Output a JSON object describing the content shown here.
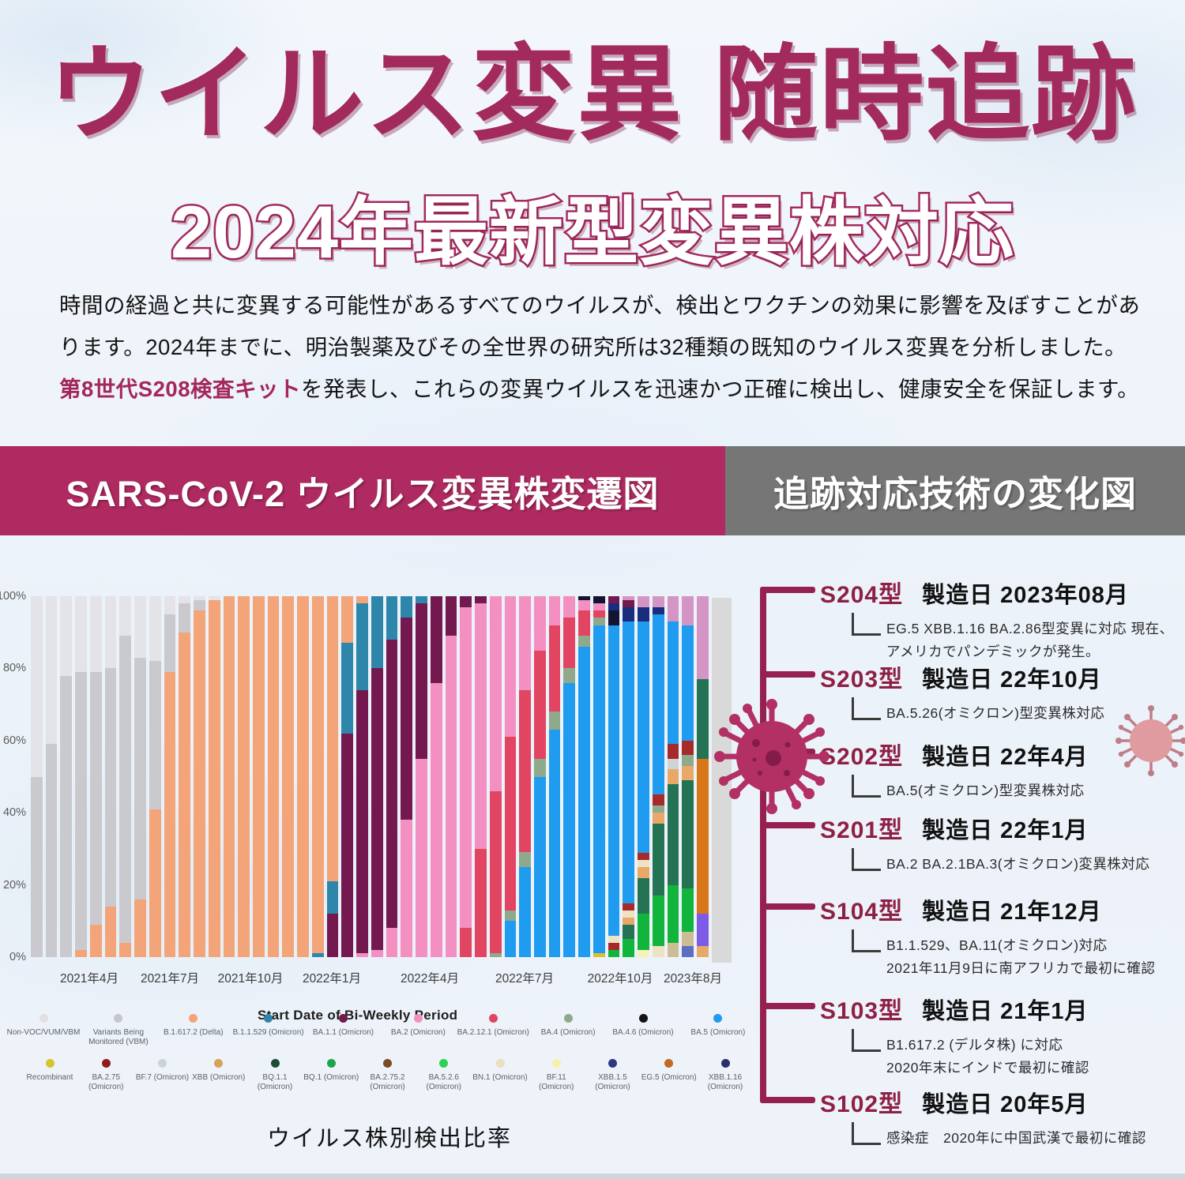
{
  "page": {
    "title": "ウイルス変異 随時追跡",
    "subtitle": "2024年最新型変異株対応"
  },
  "intro": {
    "l1": "時間の経過と共に変異する可能性があるすべてのウイルスが、検出とワクチンの効果に影響を及ぼすことがあります。",
    "l2a": "2024年までに、明治製薬及びその全世界の研究所は32種類の既知のウイルス変異を分析しました。",
    "l2b": "第8世代S208検査",
    "l3a": "キット",
    "l3b": "を発表し、これらの変異ウイルスを迅速かつ正確に検出し、健康安全を保証します。"
  },
  "section_headers": {
    "left": "SARS-CoV-2 ウイルス変異株変遷図",
    "right": "追跡対応技術の変化図"
  },
  "chart_data": {
    "type": "bar",
    "stacked": true,
    "caption": "ウイルス株別検出比率",
    "xlabel": "Start Date of Bi-Weekly Period",
    "ylim": [
      0,
      100
    ],
    "grid": false,
    "y_ticks": [
      "100%",
      "80%",
      "60%",
      "40%",
      "20%",
      "0%"
    ],
    "x_ticks": [
      "2021年4月",
      "2021年7月",
      "2021年10月",
      "2022年1月",
      "2022年4月",
      "2022年7月",
      "2022年10月",
      "2023年8月"
    ],
    "x_tick_centers": [
      113,
      215,
      317,
      420,
      544,
      664,
      785,
      877
    ],
    "colors": {
      "NV": "#e4e4e8",
      "VBM": "#c9c9ce",
      "DL": "#f3a478",
      "OM": "#2e86ab",
      "A11": "#741850",
      "A2": "#f48fc1",
      "A212": "#e24562",
      "A4": "#8fa98c",
      "A46": "#141432",
      "A5": "#1f9bf0",
      "RC": "#d8c22e",
      "A275": "#a62a2a",
      "BF7": "#cdd4d6",
      "XBB": "#e8a968",
      "BQ11": "#257355",
      "BQ1": "#12b53c",
      "A2752": "#7a4b22",
      "A526": "#2be049",
      "BN1": "#ede2c2",
      "BF11": "#f7f3b8",
      "X15": "#1b2c7e",
      "EG5": "#d8761a",
      "X116": "#7d5be6",
      "MV": "#d495c4",
      "SL": "#5e6fc2",
      "TAN": "#cdbd96"
    },
    "legend_row1": [
      {
        "label": "Non-VOC/VUM/VBM",
        "color": "#e0e0e4"
      },
      {
        "label": "Variants Being Monitored (VBM)",
        "color": "#c6c6cb"
      },
      {
        "label": "B.1.617.2 (Delta)",
        "color": "#f3a478"
      },
      {
        "label": "B.1.1.529 (Omicron)",
        "color": "#2e86ab"
      },
      {
        "label": "BA.1.1 (Omicron)",
        "color": "#741850"
      },
      {
        "label": "BA.2 (Omicron)",
        "color": "#f48fc1"
      },
      {
        "label": "BA.2.12.1 (Omicron)",
        "color": "#e24562"
      },
      {
        "label": "BA.4 (Omicron)",
        "color": "#8fa98c"
      },
      {
        "label": "BA.4.6 (Omicron)",
        "color": "#141414"
      },
      {
        "label": "BA.5 (Omicron)",
        "color": "#1f9bf0"
      }
    ],
    "legend_row2": [
      {
        "label": "Recombinant",
        "color": "#d8c22e"
      },
      {
        "label": "BA.2.75 (Omicron)",
        "color": "#8e1d1d"
      },
      {
        "label": "BF.7 (Omicron)",
        "color": "#cdd4d6"
      },
      {
        "label": "XBB (Omicron)",
        "color": "#d9a05b"
      },
      {
        "label": "BQ.1.1 (Omicron)",
        "color": "#1e4d35"
      },
      {
        "label": "BQ.1 (Omicron)",
        "color": "#1fa34d"
      },
      {
        "label": "BA.2.75.2 (Omicron)",
        "color": "#7a4b22"
      },
      {
        "label": "BA.5.2.6 (Omicron)",
        "color": "#2bd355"
      },
      {
        "label": "BN.1 (Omicron)",
        "color": "#ebdfbe"
      },
      {
        "label": "BF.11 (Omicron)",
        "color": "#f5f0ac"
      },
      {
        "label": "XBB.1.5 (Omicron)",
        "color": "#2c3a86"
      },
      {
        "label": "EG.5 (Omicron)",
        "color": "#c06a26"
      },
      {
        "label": "XBB.1.16 (Omicron)",
        "color": "#2a2f6e"
      }
    ],
    "bars": [
      [
        [
          "VBM",
          50
        ],
        [
          "NV",
          50
        ]
      ],
      [
        [
          "VBM",
          59
        ],
        [
          "NV",
          41
        ]
      ],
      [
        [
          "VBM",
          78
        ],
        [
          "NV",
          22
        ]
      ],
      [
        [
          "DL",
          2
        ],
        [
          "VBM",
          77
        ],
        [
          "NV",
          21
        ]
      ],
      [
        [
          "DL",
          9
        ],
        [
          "VBM",
          70
        ],
        [
          "NV",
          21
        ]
      ],
      [
        [
          "DL",
          14
        ],
        [
          "VBM",
          66
        ],
        [
          "NV",
          20
        ]
      ],
      [
        [
          "DL",
          4
        ],
        [
          "VBM",
          85
        ],
        [
          "NV",
          11
        ]
      ],
      [
        [
          "DL",
          16
        ],
        [
          "VBM",
          67
        ],
        [
          "NV",
          17
        ]
      ],
      [
        [
          "DL",
          41
        ],
        [
          "VBM",
          41
        ],
        [
          "NV",
          18
        ]
      ],
      [
        [
          "DL",
          79
        ],
        [
          "VBM",
          16
        ],
        [
          "NV",
          5
        ]
      ],
      [
        [
          "DL",
          90
        ],
        [
          "VBM",
          8
        ],
        [
          "NV",
          2
        ]
      ],
      [
        [
          "DL",
          96
        ],
        [
          "VBM",
          3
        ],
        [
          "NV",
          1
        ]
      ],
      [
        [
          "DL",
          99
        ],
        [
          "NV",
          1
        ]
      ],
      [
        [
          "DL",
          100
        ]
      ],
      [
        [
          "DL",
          100
        ]
      ],
      [
        [
          "DL",
          100
        ]
      ],
      [
        [
          "DL",
          100
        ]
      ],
      [
        [
          "DL",
          100
        ]
      ],
      [
        [
          "DL",
          100
        ]
      ],
      [
        [
          "OM",
          1
        ],
        [
          "DL",
          99
        ]
      ],
      [
        [
          "A11",
          12
        ],
        [
          "OM",
          9
        ],
        [
          "DL",
          79
        ]
      ],
      [
        [
          "A11",
          62
        ],
        [
          "OM",
          25
        ],
        [
          "DL",
          13
        ]
      ],
      [
        [
          "A2",
          1
        ],
        [
          "A11",
          73
        ],
        [
          "OM",
          24
        ],
        [
          "DL",
          2
        ]
      ],
      [
        [
          "A2",
          2
        ],
        [
          "A11",
          78
        ],
        [
          "OM",
          20
        ]
      ],
      [
        [
          "A2",
          8
        ],
        [
          "A11",
          80
        ],
        [
          "OM",
          12
        ]
      ],
      [
        [
          "A2",
          38
        ],
        [
          "A11",
          56
        ],
        [
          "OM",
          6
        ]
      ],
      [
        [
          "A2",
          55
        ],
        [
          "A11",
          43
        ],
        [
          "OM",
          2
        ]
      ],
      [
        [
          "A2",
          76
        ],
        [
          "A11",
          24
        ]
      ],
      [
        [
          "A2",
          89
        ],
        [
          "A11",
          11
        ]
      ],
      [
        [
          "A212",
          8
        ],
        [
          "A2",
          89
        ],
        [
          "A11",
          3
        ]
      ],
      [
        [
          "A212",
          30
        ],
        [
          "A2",
          68
        ],
        [
          "A11",
          2
        ]
      ],
      [
        [
          "A4",
          1
        ],
        [
          "A212",
          45
        ],
        [
          "A2",
          54
        ]
      ],
      [
        [
          "A5",
          10
        ],
        [
          "A4",
          3
        ],
        [
          "A212",
          48
        ],
        [
          "A2",
          39
        ]
      ],
      [
        [
          "A5",
          25
        ],
        [
          "A4",
          4
        ],
        [
          "A212",
          45
        ],
        [
          "A2",
          26
        ]
      ],
      [
        [
          "A5",
          50
        ],
        [
          "A4",
          5
        ],
        [
          "A212",
          30
        ],
        [
          "A2",
          15
        ]
      ],
      [
        [
          "A5",
          63
        ],
        [
          "A4",
          5
        ],
        [
          "A212",
          24
        ],
        [
          "A2",
          8
        ]
      ],
      [
        [
          "A5",
          76
        ],
        [
          "A4",
          4
        ],
        [
          "A212",
          14
        ],
        [
          "A2",
          6
        ]
      ],
      [
        [
          "A5",
          86
        ],
        [
          "A4",
          3
        ],
        [
          "A212",
          7
        ],
        [
          "A2",
          3
        ],
        [
          "A46",
          1
        ]
      ],
      [
        [
          "RC",
          1
        ],
        [
          "A5",
          91
        ],
        [
          "A4",
          2
        ],
        [
          "A212",
          2
        ],
        [
          "A2",
          2
        ],
        [
          "A46",
          2
        ]
      ],
      [
        [
          "BQ1",
          2
        ],
        [
          "A275",
          2
        ],
        [
          "BN1",
          2
        ],
        [
          "A5",
          86
        ],
        [
          "A46",
          4
        ],
        [
          "X15",
          2
        ],
        [
          "A11",
          2
        ]
      ],
      [
        [
          "BQ1",
          5
        ],
        [
          "BQ11",
          4
        ],
        [
          "XBB",
          2
        ],
        [
          "BN1",
          2
        ],
        [
          "A275",
          2
        ],
        [
          "A5",
          78
        ],
        [
          "X15",
          4
        ],
        [
          "A11",
          2
        ],
        [
          "MV",
          1
        ]
      ],
      [
        [
          "BF11",
          2
        ],
        [
          "BQ1",
          10
        ],
        [
          "BQ11",
          10
        ],
        [
          "XBB",
          3
        ],
        [
          "BN1",
          2
        ],
        [
          "A275",
          2
        ],
        [
          "A5",
          64
        ],
        [
          "X15",
          4
        ],
        [
          "MV",
          3
        ]
      ],
      [
        [
          "BN1",
          3
        ],
        [
          "BQ1",
          14
        ],
        [
          "BQ11",
          20
        ],
        [
          "XBB",
          3
        ],
        [
          "A4",
          2
        ],
        [
          "A275",
          3
        ],
        [
          "A5",
          50
        ],
        [
          "X15",
          2
        ],
        [
          "MV",
          3
        ]
      ],
      [
        [
          "TAN",
          4
        ],
        [
          "BQ1",
          16
        ],
        [
          "BQ11",
          28
        ],
        [
          "XBB",
          4
        ],
        [
          "BF7",
          3
        ],
        [
          "A275",
          4
        ],
        [
          "A5",
          34
        ],
        [
          "MV",
          7
        ]
      ],
      [
        [
          "SL",
          3
        ],
        [
          "TAN",
          4
        ],
        [
          "BQ1",
          12
        ],
        [
          "BQ11",
          30
        ],
        [
          "XBB",
          4
        ],
        [
          "A4",
          3
        ],
        [
          "A275",
          4
        ],
        [
          "A5",
          32
        ],
        [
          "MV",
          8
        ]
      ],
      [
        [
          "XBB",
          3
        ],
        [
          "X116",
          9
        ],
        [
          "EG5",
          43
        ],
        [
          "BQ11",
          22
        ],
        [
          "MV",
          23
        ]
      ]
    ]
  },
  "timeline": {
    "entries": [
      {
        "model": "S204型",
        "date": "製造日 2023年08月",
        "desc": [
          "EG.5  XBB.1.16 BA.2.86型変異に対応 現在、",
          "アメリカでパンデミックが発生。"
        ]
      },
      {
        "model": "S203型",
        "date": "製造日 22年10月",
        "desc": [
          "BA.5.26(オミクロン)型変異株対応"
        ]
      },
      {
        "model": "S202型",
        "date": "製造日 22年4月",
        "desc": [
          "BA.5(オミクロン)型変異株対応"
        ]
      },
      {
        "model": "S201型",
        "date": "製造日 22年1月",
        "desc": [
          "BA.2 BA.2.1BA.3(オミクロン)変異株対応"
        ]
      },
      {
        "model": "S104型",
        "date": "製造日 21年12月",
        "desc": [
          "B1.1.529、BA.11(オミクロン)対応",
          "2021年11月9日に南アフリカで最初に確認"
        ]
      },
      {
        "model": "S103型",
        "date": "製造日 21年1月",
        "desc": [
          "B1.617.2 (デルタ株) に対応",
          "2020年末にインドで最初に確認"
        ]
      },
      {
        "model": "S102型",
        "date": "製造日 20年5月",
        "desc": [
          "感染症　2020年に中国武漢で最初に確認"
        ]
      }
    ]
  }
}
